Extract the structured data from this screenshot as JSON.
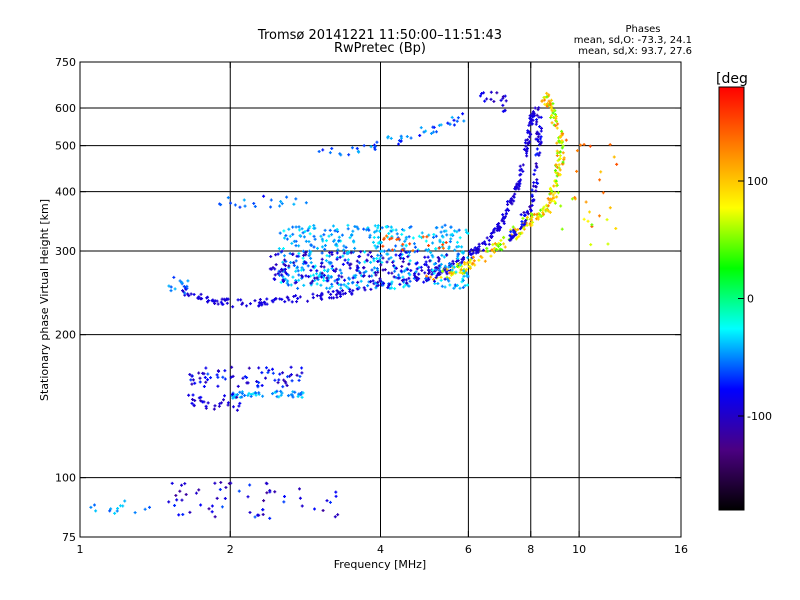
{
  "chart_data": {
    "type": "scatter",
    "title": "Tromsø 20141221 11:50:00–11:51:43",
    "subtitle": "RwPretec (Bp)",
    "xlabel": "Frequency [MHz]",
    "ylabel": "Stationary phase Virtual Height [km]",
    "x_scale": "log2",
    "y_scale": "log",
    "xlim": [
      1,
      16
    ],
    "ylim": [
      75,
      750
    ],
    "x_ticks": [
      1,
      2,
      4,
      6,
      8,
      10,
      16
    ],
    "x_tick_labels": [
      "1",
      "2",
      "4",
      "6",
      "8",
      "10",
      "16"
    ],
    "y_ticks": [
      75,
      100,
      200,
      300,
      400,
      500,
      600,
      750
    ],
    "y_tick_labels": [
      "75",
      "100",
      "200",
      "300",
      "400",
      "500",
      "600",
      "750"
    ],
    "grid_x": [
      2,
      4,
      6,
      8,
      10
    ],
    "grid_y": [
      100,
      200,
      300,
      400,
      500,
      600
    ],
    "stats_title": "Phases",
    "stats_lines": [
      "mean, sd,O: -73.3, 24.1",
      "mean, sd,X:  93.7, 27.6"
    ],
    "colorbar": {
      "label": "[deg",
      "min": -180,
      "max": 180,
      "ticks": [
        100,
        0,
        -100
      ],
      "tick_labels": [
        "100",
        "0",
        "-100"
      ],
      "colors": [
        "#000000",
        "#4b0082",
        "#0000ff",
        "#00ffff",
        "#00ff00",
        "#ffff00",
        "#ff8000",
        "#ff0000"
      ]
    },
    "clusters": [
      {
        "name": "O-mode F trace",
        "curve": [
          [
            1.6,
            248
          ],
          [
            1.8,
            238
          ],
          [
            2.0,
            233
          ],
          [
            2.4,
            234
          ],
          [
            3.0,
            240
          ],
          [
            3.5,
            246
          ],
          [
            4.0,
            254
          ],
          [
            5.0,
            268
          ],
          [
            5.5,
            278
          ],
          [
            6.0,
            292
          ],
          [
            6.5,
            310
          ],
          [
            7.0,
            345
          ],
          [
            7.3,
            380
          ],
          [
            7.6,
            420
          ],
          [
            7.8,
            480
          ],
          [
            8.0,
            550
          ],
          [
            8.1,
            600
          ]
        ],
        "spread": 0.008,
        "n": 320,
        "phase": [
          -100,
          -85
        ]
      },
      {
        "name": "X-mode F trace",
        "curve": [
          [
            5.0,
            262
          ],
          [
            5.5,
            270
          ],
          [
            6.0,
            280
          ],
          [
            6.5,
            295
          ],
          [
            7.0,
            310
          ],
          [
            7.5,
            330
          ],
          [
            8.0,
            350
          ],
          [
            8.5,
            365
          ],
          [
            8.8,
            380
          ],
          [
            9.0,
            420
          ],
          [
            9.2,
            470
          ],
          [
            9.1,
            540
          ],
          [
            8.8,
            600
          ],
          [
            8.5,
            640
          ]
        ],
        "spread": 0.012,
        "n": 260,
        "phase": [
          40,
          130
        ]
      },
      {
        "name": "Upper blue branch",
        "curve": [
          [
            7.2,
            310
          ],
          [
            7.6,
            340
          ],
          [
            8.0,
            370
          ],
          [
            8.2,
            420
          ],
          [
            8.3,
            500
          ],
          [
            8.3,
            600
          ]
        ],
        "spread": 0.01,
        "n": 90,
        "phase": [
          -110,
          -70
        ]
      },
      {
        "name": "Diffuse cyan F",
        "box": [
          [
            2.5,
            6.0
          ],
          [
            250,
            340
          ]
        ],
        "n": 460,
        "phase": [
          -60,
          -25
        ]
      },
      {
        "name": "Diffuse blue F",
        "box": [
          [
            2.4,
            5.5
          ],
          [
            255,
            300
          ]
        ],
        "n": 180,
        "phase": [
          -110,
          -80
        ]
      },
      {
        "name": "Orange streak",
        "box": [
          [
            4.0,
            5.5
          ],
          [
            300,
            325
          ]
        ],
        "n": 20,
        "phase": [
          130,
          160
        ]
      },
      {
        "name": "High cyan layer",
        "curve": [
          [
            3.0,
            480
          ],
          [
            3.5,
            490
          ],
          [
            4.0,
            505
          ],
          [
            4.5,
            520
          ],
          [
            5.0,
            540
          ],
          [
            5.5,
            560
          ],
          [
            5.9,
            580
          ]
        ],
        "spread": 0.01,
        "n": 50,
        "phase": [
          -80,
          -40
        ]
      },
      {
        "name": "Top blue cluster",
        "box": [
          [
            6.3,
            7.2
          ],
          [
            590,
            650
          ]
        ],
        "n": 18,
        "phase": [
          -110,
          -80
        ]
      },
      {
        "name": "Low branch 380km",
        "box": [
          [
            1.9,
            2.9
          ],
          [
            370,
            395
          ]
        ],
        "n": 20,
        "phase": [
          -80,
          -40
        ]
      },
      {
        "name": "Lower 240 cluster",
        "box": [
          [
            1.5,
            1.7
          ],
          [
            240,
            265
          ]
        ],
        "n": 14,
        "phase": [
          -70,
          -40
        ]
      },
      {
        "name": "Es 160km",
        "box": [
          [
            1.65,
            2.8
          ],
          [
            155,
            172
          ]
        ],
        "n": 70,
        "phase": [
          -110,
          -60
        ]
      },
      {
        "name": "Es 150km",
        "box": [
          [
            2.0,
            2.8
          ],
          [
            147,
            152
          ]
        ],
        "n": 50,
        "phase": [
          -60,
          -30
        ]
      },
      {
        "name": "Es 140-150 blue",
        "box": [
          [
            1.65,
            2.1
          ],
          [
            138,
            150
          ]
        ],
        "n": 30,
        "phase": [
          -110,
          -80
        ]
      },
      {
        "name": "E region",
        "box": [
          [
            1.5,
            3.3
          ],
          [
            82,
            98
          ]
        ],
        "n": 60,
        "phase": [
          -120,
          -60
        ]
      },
      {
        "name": "E region cyan",
        "box": [
          [
            1.05,
            1.4
          ],
          [
            84,
            90
          ]
        ],
        "n": 14,
        "phase": [
          -60,
          -30
        ]
      },
      {
        "name": "X-mode scatter",
        "box": [
          [
            9.0,
            12.0
          ],
          [
            300,
            520
          ]
        ],
        "n": 30,
        "phase": [
          40,
          150
        ]
      }
    ]
  }
}
